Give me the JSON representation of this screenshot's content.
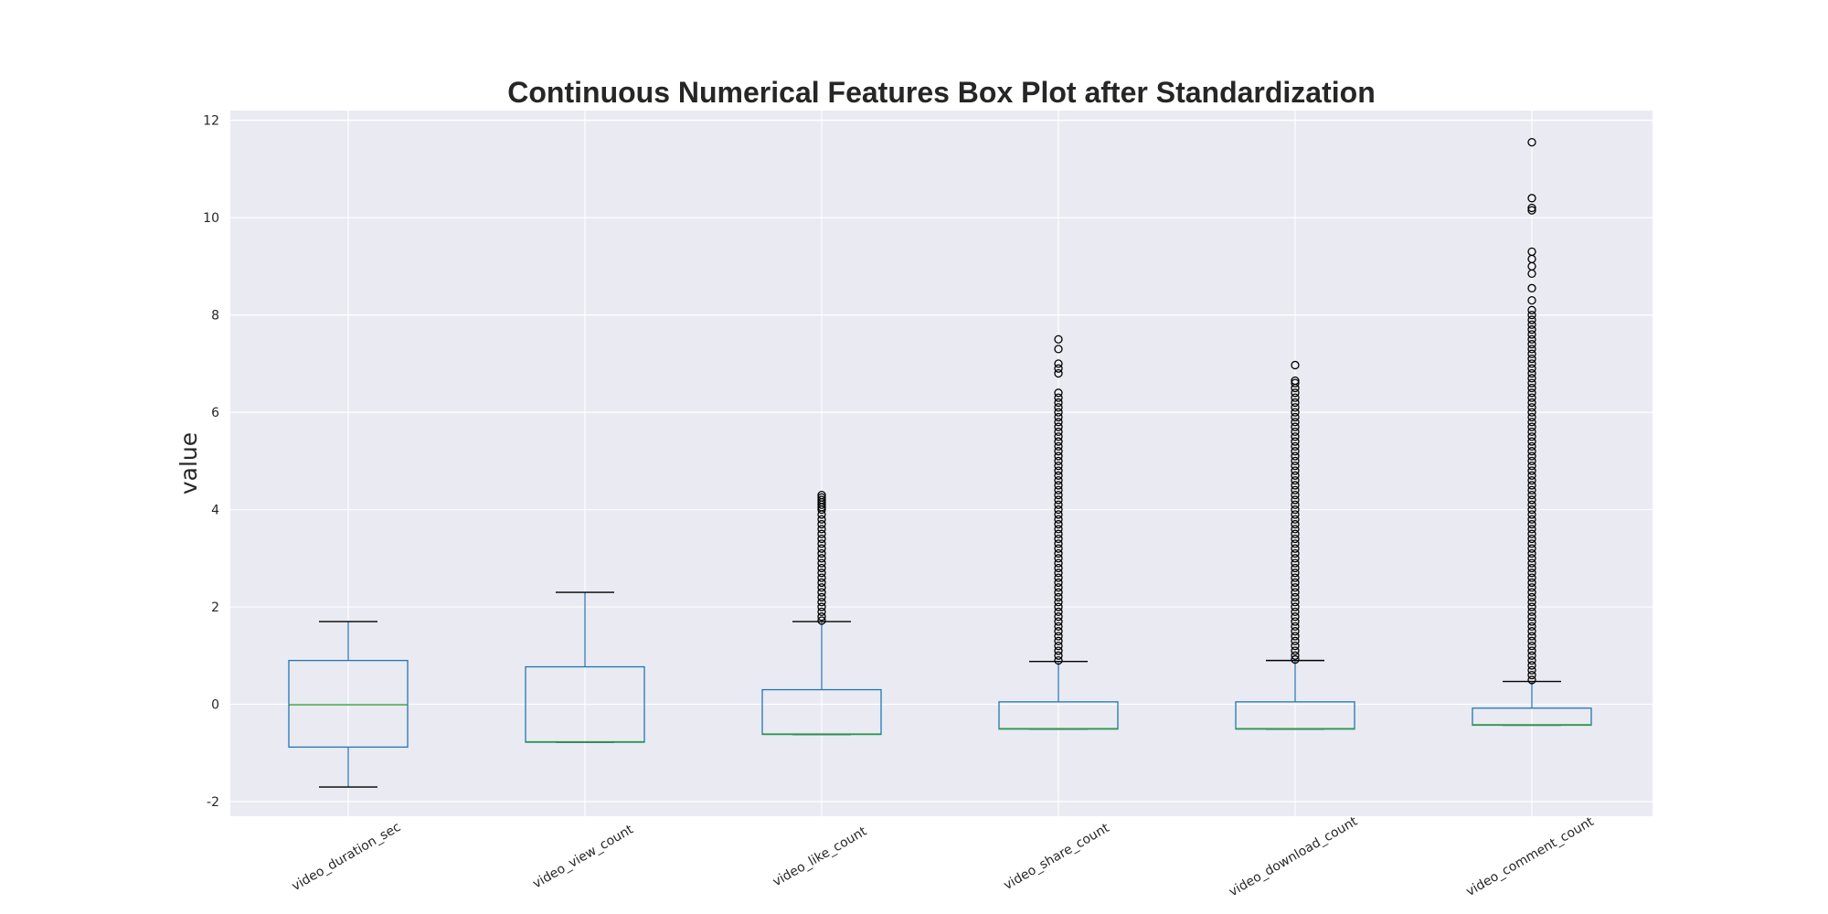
{
  "chart_data": {
    "type": "box",
    "title": "Continuous Numerical Features Box Plot after Standardization",
    "xlabel": "",
    "ylabel": "value",
    "ylim": [
      -2.3,
      12.2
    ],
    "yticks": [
      -2,
      0,
      2,
      4,
      6,
      8,
      10,
      12
    ],
    "grid": true,
    "categories": [
      "video_duration_sec",
      "video_view_count",
      "video_like_count",
      "video_share_count",
      "video_download_count",
      "video_comment_count"
    ],
    "series": [
      {
        "whisker_low": -1.7,
        "q1": -0.88,
        "median": -0.01,
        "q3": 0.9,
        "whisker_high": 1.7,
        "outliers": []
      },
      {
        "whisker_low": -0.78,
        "q1": -0.78,
        "median": -0.77,
        "q3": 0.77,
        "whisker_high": 2.3,
        "outliers": []
      },
      {
        "whisker_low": -0.62,
        "q1": -0.62,
        "median": -0.61,
        "q3": 0.3,
        "whisker_high": 1.7,
        "outliers": [
          1.72,
          1.8,
          1.9,
          2.0,
          2.1,
          2.2,
          2.3,
          2.4,
          2.5,
          2.6,
          2.7,
          2.8,
          2.9,
          3.0,
          3.1,
          3.2,
          3.3,
          3.4,
          3.5,
          3.6,
          3.7,
          3.8,
          3.9,
          4.0,
          4.05,
          4.1,
          4.15,
          4.2,
          4.25,
          4.3
        ]
      },
      {
        "whisker_low": -0.51,
        "q1": -0.51,
        "median": -0.5,
        "q3": 0.05,
        "whisker_high": 0.88,
        "outliers": [
          0.9,
          1.0,
          1.1,
          1.2,
          1.3,
          1.4,
          1.5,
          1.6,
          1.7,
          1.8,
          1.9,
          2.0,
          2.1,
          2.2,
          2.3,
          2.4,
          2.5,
          2.6,
          2.7,
          2.8,
          2.9,
          3.0,
          3.1,
          3.2,
          3.3,
          3.4,
          3.5,
          3.6,
          3.7,
          3.8,
          3.9,
          4.0,
          4.1,
          4.2,
          4.3,
          4.4,
          4.5,
          4.6,
          4.7,
          4.8,
          4.9,
          5.0,
          5.1,
          5.2,
          5.3,
          5.4,
          5.5,
          5.6,
          5.7,
          5.8,
          5.9,
          6.0,
          6.1,
          6.2,
          6.3,
          6.4,
          6.8,
          6.9,
          7.0,
          7.3,
          7.5
        ]
      },
      {
        "whisker_low": -0.51,
        "q1": -0.51,
        "median": -0.5,
        "q3": 0.05,
        "whisker_high": 0.9,
        "outliers": [
          0.92,
          1.0,
          1.1,
          1.2,
          1.3,
          1.4,
          1.5,
          1.6,
          1.7,
          1.8,
          1.9,
          2.0,
          2.1,
          2.2,
          2.3,
          2.4,
          2.5,
          2.6,
          2.7,
          2.8,
          2.9,
          3.0,
          3.1,
          3.2,
          3.3,
          3.4,
          3.5,
          3.6,
          3.7,
          3.8,
          3.9,
          4.0,
          4.1,
          4.2,
          4.3,
          4.4,
          4.5,
          4.6,
          4.7,
          4.8,
          4.9,
          5.0,
          5.1,
          5.2,
          5.3,
          5.4,
          5.5,
          5.6,
          5.7,
          5.8,
          5.9,
          6.0,
          6.1,
          6.2,
          6.3,
          6.4,
          6.5,
          6.6,
          6.65,
          6.97
        ]
      },
      {
        "whisker_low": -0.43,
        "q1": -0.43,
        "median": -0.42,
        "q3": -0.08,
        "whisker_high": 0.47,
        "outliers": [
          0.5,
          0.6,
          0.7,
          0.8,
          0.9,
          1.0,
          1.1,
          1.2,
          1.3,
          1.4,
          1.5,
          1.6,
          1.7,
          1.8,
          1.9,
          2.0,
          2.1,
          2.2,
          2.3,
          2.4,
          2.5,
          2.6,
          2.7,
          2.8,
          2.9,
          3.0,
          3.1,
          3.2,
          3.3,
          3.4,
          3.5,
          3.6,
          3.7,
          3.8,
          3.9,
          4.0,
          4.1,
          4.2,
          4.3,
          4.4,
          4.5,
          4.6,
          4.7,
          4.8,
          4.9,
          5.0,
          5.1,
          5.2,
          5.3,
          5.4,
          5.5,
          5.6,
          5.7,
          5.8,
          5.9,
          6.0,
          6.1,
          6.2,
          6.3,
          6.4,
          6.5,
          6.6,
          6.7,
          6.8,
          6.9,
          7.0,
          7.1,
          7.2,
          7.3,
          7.4,
          7.5,
          7.6,
          7.7,
          7.8,
          7.9,
          8.0,
          8.1,
          8.3,
          8.55,
          8.85,
          9.0,
          9.15,
          9.3,
          10.15,
          10.2,
          10.4,
          11.55
        ]
      }
    ],
    "colors": {
      "background": "#eaeaf2",
      "grid": "#ffffff",
      "box": "#1f77b4",
      "median": "#2ca02c",
      "whisker_cap": "#000000",
      "flier": "#000000",
      "text": "#262626"
    }
  }
}
